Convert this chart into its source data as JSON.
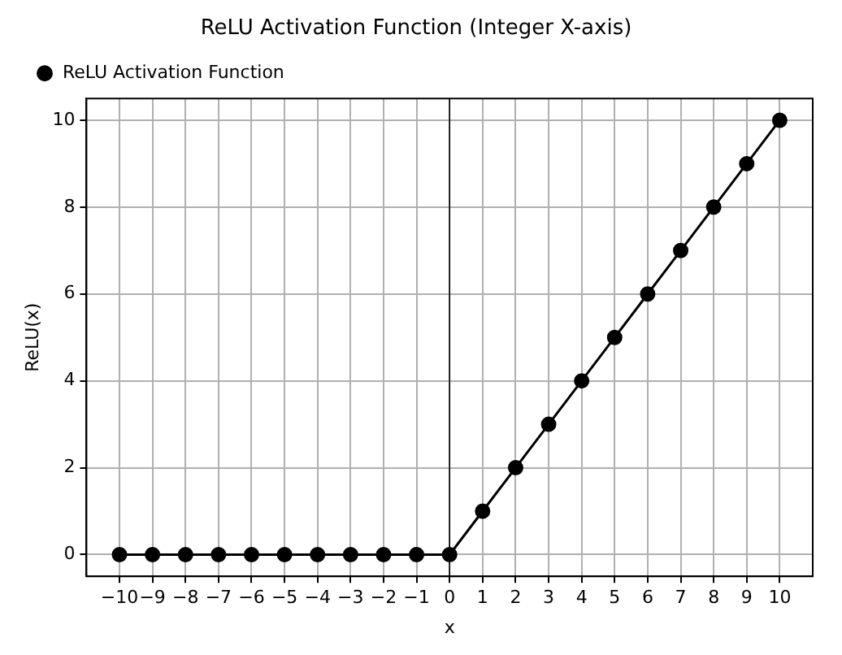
{
  "chart_data": {
    "type": "line",
    "title": "ReLU Activation Function (Integer X-axis)",
    "xlabel": "x",
    "ylabel": "ReLU(x)",
    "x": [
      -10,
      -9,
      -8,
      -7,
      -6,
      -5,
      -4,
      -3,
      -2,
      -1,
      0,
      1,
      2,
      3,
      4,
      5,
      6,
      7,
      8,
      9,
      10
    ],
    "series": [
      {
        "name": "ReLU Activation Function",
        "color": "#000000",
        "values": [
          0,
          0,
          0,
          0,
          0,
          0,
          0,
          0,
          0,
          0,
          0,
          1,
          2,
          3,
          4,
          5,
          6,
          7,
          8,
          9,
          10
        ]
      }
    ],
    "xlim": [
      -11,
      11
    ],
    "ylim": [
      -0.5,
      10.5
    ],
    "xticks": [
      {
        "value": -10,
        "label": "−10"
      },
      {
        "value": -9,
        "label": "−9"
      },
      {
        "value": -8,
        "label": "−8"
      },
      {
        "value": -7,
        "label": "−7"
      },
      {
        "value": -6,
        "label": "−6"
      },
      {
        "value": -5,
        "label": "−5"
      },
      {
        "value": -4,
        "label": "−4"
      },
      {
        "value": -3,
        "label": "−3"
      },
      {
        "value": -2,
        "label": "−2"
      },
      {
        "value": -1,
        "label": "−1"
      },
      0,
      1,
      2,
      3,
      4,
      5,
      6,
      7,
      8,
      9,
      10
    ],
    "yticks": [
      0,
      2,
      4,
      6,
      8,
      10
    ],
    "ref_lines": [
      {
        "axis": "x",
        "value": 0,
        "color": "#000000"
      }
    ],
    "grid": true,
    "legend": "top left",
    "marker": "circle",
    "line_style": "solid"
  }
}
